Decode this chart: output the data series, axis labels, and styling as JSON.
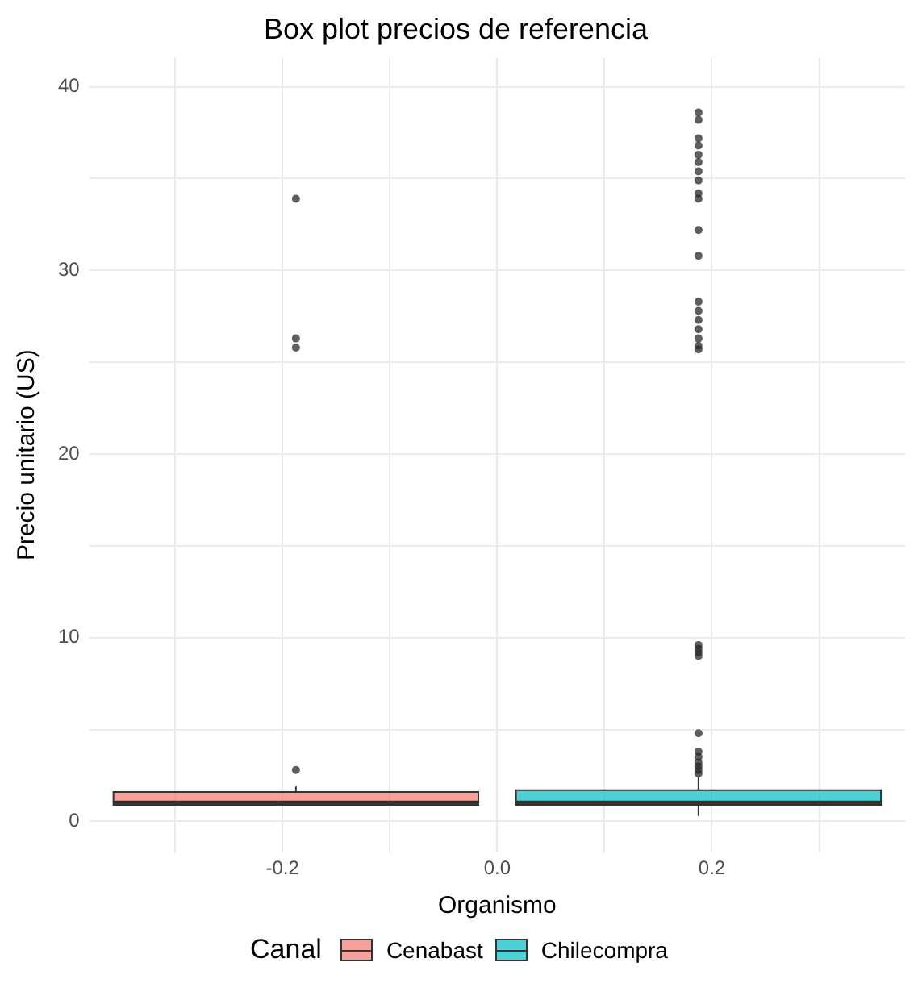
{
  "chart_data": {
    "type": "box",
    "title": "Box plot precios de referencia",
    "xlabel": "Organismo",
    "ylabel": "Precio unitario (US)",
    "legend_title": "Canal",
    "legend": "bottom",
    "grid": true,
    "xlim": [
      -0.38,
      0.38
    ],
    "xticks": [
      {
        "value": -0.3,
        "label": null
      },
      {
        "value": -0.2,
        "label": "-0.2"
      },
      {
        "value": -0.1,
        "label": null
      },
      {
        "value": 0,
        "label": "0.0"
      },
      {
        "value": 0.1,
        "label": null
      },
      {
        "value": 0.2,
        "label": "0.2"
      },
      {
        "value": 0.3,
        "label": null
      }
    ],
    "ylim": [
      -1.7,
      41.6
    ],
    "yticks": [
      0,
      {
        "value": 5,
        "label": null
      },
      10,
      {
        "value": 15,
        "label": null
      },
      20,
      {
        "value": 25,
        "label": null
      },
      30,
      {
        "value": 35,
        "label": null
      },
      40
    ],
    "x": [
      -0.1875,
      0.1875
    ],
    "series": [
      {
        "name": "Cenabast",
        "color": "#f8766d",
        "boxes": [
          {
            "low": 0.9,
            "q1": 0.9,
            "median": 1.0,
            "q3": 1.6,
            "high": 1.9,
            "outliers": [
              2.8,
              25.8,
              26.3,
              33.9
            ]
          },
          null
        ]
      },
      {
        "name": "Chilecompra",
        "color": "#00bfc4",
        "boxes": [
          null,
          {
            "low": 0.3,
            "q1": 0.9,
            "median": 1.0,
            "q3": 1.7,
            "high": 2.4,
            "outliers": [
              2.6,
              2.8,
              3.0,
              3.2,
              3.5,
              3.8,
              4.8,
              9.0,
              9.2,
              9.4,
              9.6,
              25.7,
              25.9,
              26.3,
              26.8,
              27.3,
              27.8,
              28.3,
              30.8,
              32.2,
              33.9,
              34.2,
              34.9,
              35.4,
              35.9,
              36.3,
              36.8,
              37.2,
              38.2,
              38.6
            ]
          }
        ]
      }
    ]
  }
}
